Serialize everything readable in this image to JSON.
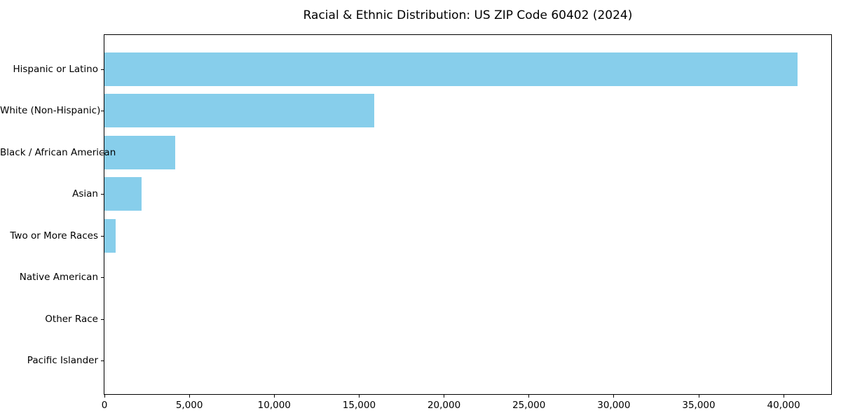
{
  "chart_data": {
    "type": "bar",
    "orientation": "horizontal",
    "title": "Racial & Ethnic Distribution: US ZIP Code 60402 (2024)",
    "categories": [
      "Hispanic or Latino",
      "White (Non-Hispanic)",
      "Black / African American",
      "Asian",
      "Two or More Races",
      "Native American",
      "Other Race",
      "Pacific Islander"
    ],
    "values": [
      40800,
      15900,
      4150,
      2200,
      640,
      0,
      0,
      0
    ],
    "bar_color": "#87CEEB",
    "xlabel": "",
    "ylabel": "",
    "xlim": [
      0,
      42800
    ],
    "x_ticks": [
      0,
      5000,
      10000,
      15000,
      20000,
      25000,
      30000,
      35000,
      40000
    ],
    "x_tick_labels": [
      "0",
      "5,000",
      "10,000",
      "15,000",
      "20,000",
      "25,000",
      "30,000",
      "35,000",
      "40,000"
    ],
    "grid": false,
    "legend": null
  }
}
